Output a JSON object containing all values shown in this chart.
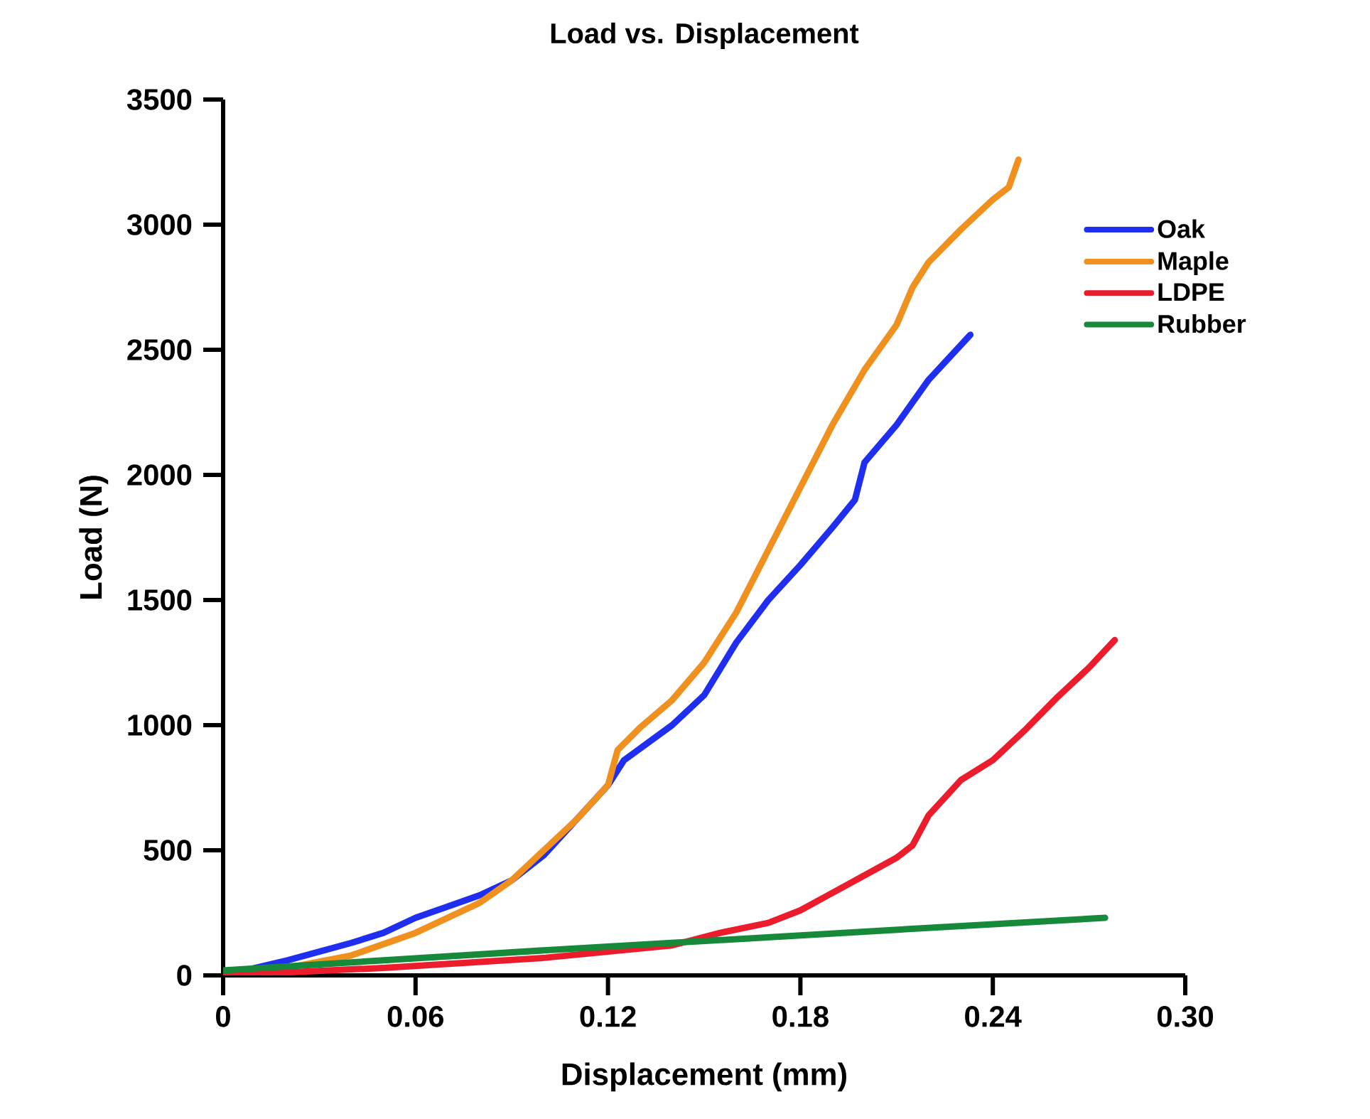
{
  "chart_data": {
    "type": "line",
    "title": "Load vs. Displacement",
    "xlabel": "Displacement (mm)",
    "ylabel": "Load (N)",
    "xlim": [
      0,
      0.3
    ],
    "ylim": [
      0,
      3500
    ],
    "xticks": [
      0,
      0.06,
      0.12,
      0.18,
      0.24,
      {
        "value": 0.3,
        "label": "0.30"
      }
    ],
    "yticks": [
      0,
      500,
      1000,
      1500,
      2000,
      2500,
      3000,
      3500
    ],
    "grid": false,
    "legend": "top right",
    "marker": "none",
    "line_style": "solid",
    "series": [
      {
        "name": "Oak",
        "color": "#1f2ef0",
        "x": [
          0,
          0.02,
          0.04,
          0.05,
          0.06,
          0.08,
          0.09,
          0.1,
          0.11,
          0.12,
          0.125,
          0.14,
          0.15,
          0.16,
          0.17,
          0.18,
          0.19,
          0.197,
          0.2,
          0.21,
          0.22,
          0.233
        ],
        "values": [
          0,
          60,
          130,
          170,
          230,
          320,
          380,
          480,
          620,
          760,
          860,
          1000,
          1120,
          1330,
          1500,
          1640,
          1790,
          1900,
          2050,
          2200,
          2380,
          2560
        ]
      },
      {
        "name": "Maple",
        "color": "#f0901e",
        "x": [
          0,
          0.02,
          0.04,
          0.06,
          0.08,
          0.09,
          0.1,
          0.11,
          0.12,
          0.123,
          0.13,
          0.14,
          0.15,
          0.16,
          0.17,
          0.18,
          0.19,
          0.2,
          0.21,
          0.215,
          0.22,
          0.23,
          0.24,
          0.245,
          0.248
        ],
        "values": [
          0,
          30,
          80,
          170,
          290,
          380,
          500,
          620,
          760,
          900,
          990,
          1100,
          1250,
          1450,
          1700,
          1950,
          2200,
          2420,
          2600,
          2750,
          2850,
          2980,
          3100,
          3150,
          3260
        ]
      },
      {
        "name": "LDPE",
        "color": "#ec1c2c",
        "x": [
          0,
          0.05,
          0.1,
          0.14,
          0.155,
          0.17,
          0.18,
          0.19,
          0.2,
          0.21,
          0.215,
          0.22,
          0.23,
          0.24,
          0.25,
          0.26,
          0.27,
          0.278
        ],
        "values": [
          0,
          30,
          70,
          120,
          170,
          210,
          260,
          330,
          400,
          470,
          520,
          640,
          780,
          860,
          980,
          1110,
          1230,
          1340
        ]
      },
      {
        "name": "Rubber",
        "color": "#168a3a",
        "x": [
          0,
          0.1,
          0.2,
          0.275
        ],
        "values": [
          20,
          100,
          175,
          230
        ]
      }
    ]
  }
}
